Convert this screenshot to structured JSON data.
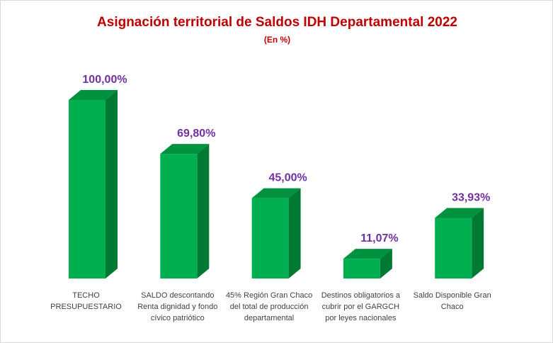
{
  "chart_data": {
    "type": "bar",
    "title": "Asignación territorial de Saldos IDH Departamental 2022",
    "subtitle": "(En %)",
    "categories": [
      "TECHO PRESUPUESTARIO",
      "SALDO descontando Renta dignidad y fondo cívico patriótico",
      "45% Región Gran Chaco del total de producción departamental",
      "Destinos obligatorios a cubrir por el GARGCH por leyes nacionales",
      "Saldo Disponible Gran Chaco"
    ],
    "values": [
      100.0,
      69.8,
      45.0,
      11.07,
      33.93
    ],
    "data_labels": [
      "100,00%",
      "69,80%",
      "45,00%",
      "11,07%",
      "33,93%"
    ],
    "xlabel": "",
    "ylabel": "",
    "ylim": [
      0,
      100
    ],
    "grid": false,
    "colors": {
      "front": "#00b050",
      "top": "#00923f",
      "side": "#007a33",
      "label": "#7030a0",
      "title": "#c00000"
    }
  }
}
